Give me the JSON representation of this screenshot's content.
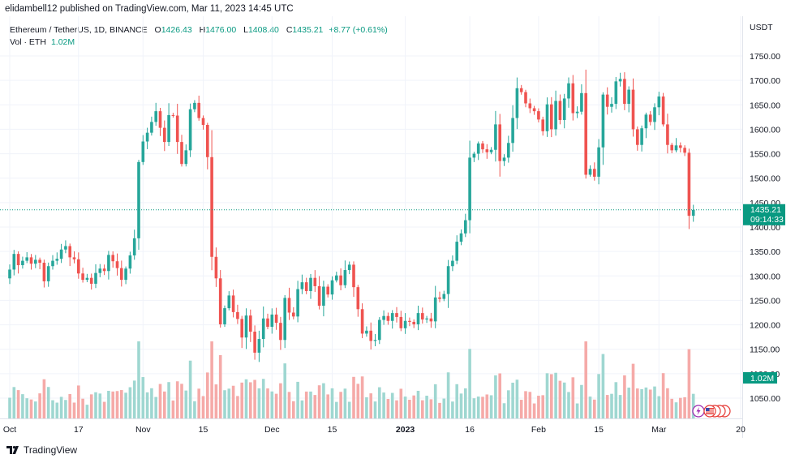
{
  "header": {
    "publisher": "elidambell12 published on TradingView.com, Mar 11, 2023 14:45 UTC"
  },
  "legend": {
    "symbol": "Ethereum / TetherUS, 1D, BINANCE",
    "open_label": "O",
    "open": "1426.43",
    "high_label": "H",
    "high": "1476.00",
    "low_label": "L",
    "low": "1408.40",
    "close_label": "C",
    "close": "1435.21",
    "change": "+8.77 (+0.61%)"
  },
  "volume_legend": {
    "label": "Vol · ETH",
    "value": "1.02M"
  },
  "footer": {
    "brand": "TradingView"
  },
  "colors": {
    "up": "#26a69a",
    "down": "#ef5350",
    "up_vol": "#9fd7d1",
    "down_vol": "#f5aaa8",
    "price_line": "#089981",
    "grid": "#f0f3fa"
  },
  "chart_data": {
    "type": "candlestick",
    "title": "Ethereum / TetherUS, 1D, BINANCE",
    "currency": "USDT",
    "ylim": [
      1020,
      1775
    ],
    "y_ticks": [
      "1750.00",
      "1700.00",
      "1650.00",
      "1600.00",
      "1550.00",
      "1500.00",
      "1450.00",
      "1400.00",
      "1350.00",
      "1300.00",
      "1250.00",
      "1200.00",
      "1150.00",
      "1100.00",
      "1050.00"
    ],
    "x_ticks": [
      {
        "label": "Oct",
        "day": 0,
        "bold": false
      },
      {
        "label": "17",
        "day": 16,
        "bold": false
      },
      {
        "label": "Nov",
        "day": 31,
        "bold": false
      },
      {
        "label": "15",
        "day": 45,
        "bold": false
      },
      {
        "label": "Dec",
        "day": 61,
        "bold": false
      },
      {
        "label": "15",
        "day": 75,
        "bold": false
      },
      {
        "label": "2023",
        "day": 92,
        "bold": true
      },
      {
        "label": "16",
        "day": 107,
        "bold": false
      },
      {
        "label": "Feb",
        "day": 123,
        "bold": false
      },
      {
        "label": "15",
        "day": 137,
        "bold": false
      },
      {
        "label": "Mar",
        "day": 151,
        "bold": false
      },
      {
        "label": "20",
        "day": 170,
        "bold": false
      }
    ],
    "last_price": "1435.21",
    "last_price_value": 1435.21,
    "countdown": "09:14:33",
    "last_volume": "1.02M",
    "closes": [
      1313,
      1345,
      1322,
      1331,
      1338,
      1325,
      1333,
      1327,
      1289,
      1320,
      1331,
      1335,
      1354,
      1361,
      1338,
      1334,
      1305,
      1292,
      1296,
      1284,
      1306,
      1315,
      1310,
      1343,
      1330,
      1316,
      1292,
      1315,
      1342,
      1377,
      1533,
      1575,
      1593,
      1615,
      1637,
      1603,
      1574,
      1629,
      1628,
      1574,
      1529,
      1557,
      1641,
      1654,
      1623,
      1609,
      1543,
      1339,
      1295,
      1201,
      1234,
      1260,
      1226,
      1212,
      1174,
      1219,
      1186,
      1143,
      1171,
      1213,
      1196,
      1221,
      1204,
      1169,
      1255,
      1225,
      1217,
      1273,
      1287,
      1269,
      1296,
      1279,
      1239,
      1278,
      1262,
      1291,
      1301,
      1281,
      1312,
      1323,
      1277,
      1232,
      1182,
      1188,
      1167,
      1169,
      1210,
      1218,
      1208,
      1224,
      1216,
      1193,
      1208,
      1206,
      1201,
      1224,
      1211,
      1213,
      1207,
      1256,
      1253,
      1263,
      1320,
      1331,
      1370,
      1387,
      1414,
      1542,
      1550,
      1571,
      1559,
      1553,
      1558,
      1610,
      1535,
      1542,
      1572,
      1623,
      1684,
      1676,
      1653,
      1643,
      1637,
      1620,
      1596,
      1651,
      1600,
      1658,
      1619,
      1663,
      1694,
      1633,
      1636,
      1674,
      1507,
      1519,
      1503,
      1563,
      1671,
      1646,
      1652,
      1698,
      1703,
      1652,
      1681,
      1600,
      1568,
      1602,
      1630,
      1615,
      1645,
      1667,
      1610,
      1568,
      1557,
      1567,
      1562,
      1552,
      1423,
      1435
    ]
  }
}
